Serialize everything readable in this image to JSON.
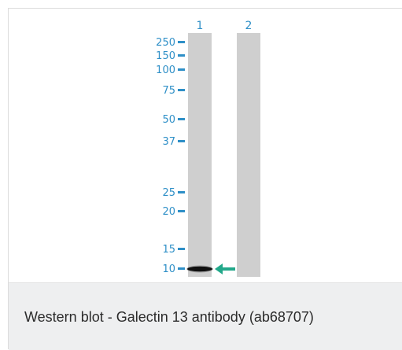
{
  "lanes": [
    {
      "label": "1"
    },
    {
      "label": "2"
    }
  ],
  "markers": [
    {
      "label": "250"
    },
    {
      "label": "150"
    },
    {
      "label": "100"
    },
    {
      "label": "75"
    },
    {
      "label": "50"
    },
    {
      "label": "37"
    },
    {
      "label": "25"
    },
    {
      "label": "20"
    },
    {
      "label": "15"
    },
    {
      "label": "10"
    }
  ],
  "colors": {
    "accent": "#2e8fc7",
    "arrow": "#22a88a",
    "lane": "#cfcfcf",
    "band": "#111111",
    "caption_bg": "#eeeff0"
  },
  "icons": {
    "band_pointer": "arrow-left-icon"
  },
  "caption": "Western blot - Galectin 13 antibody (ab68707)"
}
